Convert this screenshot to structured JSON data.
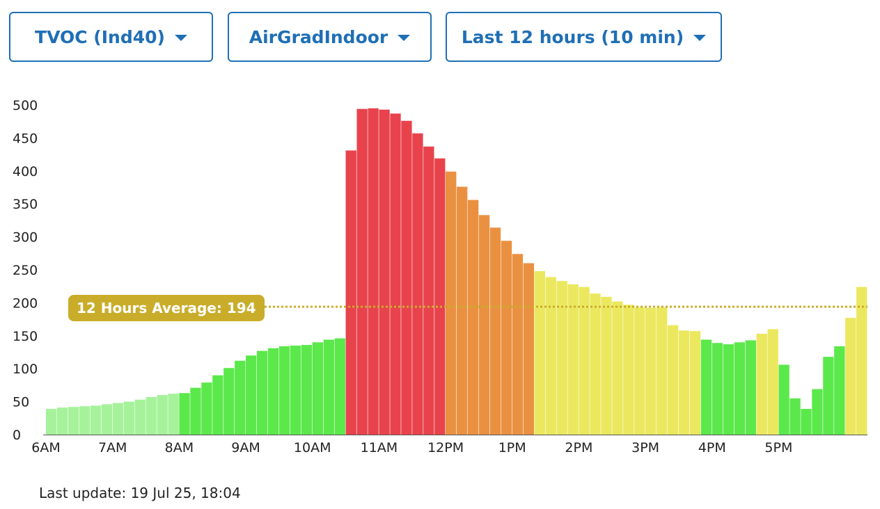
{
  "selectors": {
    "metric": "TVOC (Ind40)",
    "location": "AirGradIndoor",
    "period": "Last 12 hours (10 min)"
  },
  "average": {
    "label": "12 Hours Average: 194",
    "value": 194,
    "color": "#c9ad2a"
  },
  "last_update": "Last update: 19 Jul 25, 18:04",
  "colors": {
    "light_green": "#a6f29b",
    "green": "#5be84b",
    "yellow": "#ebe85f",
    "orange": "#ea9141",
    "red": "#e8434c"
  },
  "chart_data": {
    "type": "bar",
    "ylim": [
      0,
      500
    ],
    "yticks": [
      "0",
      "50",
      "100",
      "150",
      "200",
      "250",
      "300",
      "350",
      "400",
      "450",
      "500"
    ],
    "xticks": [
      "6AM",
      "7AM",
      "8AM",
      "9AM",
      "10AM",
      "11AM",
      "12PM",
      "1PM",
      "2PM",
      "3PM",
      "4PM",
      "5PM"
    ],
    "grid": false,
    "values": [
      39,
      41,
      42,
      43,
      44,
      46,
      48,
      50,
      53,
      57,
      60,
      62,
      63,
      71,
      79,
      90,
      101,
      112,
      120,
      127,
      131,
      134,
      135,
      136,
      140,
      144,
      146,
      431,
      494,
      495,
      493,
      487,
      476,
      457,
      437,
      419,
      399,
      376,
      356,
      333,
      314,
      294,
      274,
      260,
      248,
      239,
      233,
      228,
      224,
      214,
      209,
      202,
      197,
      193,
      192,
      193,
      166,
      158,
      157,
      144,
      139,
      137,
      140,
      143,
      153,
      160,
      106,
      55,
      39,
      69,
      118,
      134,
      177,
      224
    ],
    "categories": [
      "light_green",
      "light_green",
      "light_green",
      "light_green",
      "light_green",
      "light_green",
      "light_green",
      "light_green",
      "light_green",
      "light_green",
      "light_green",
      "light_green",
      "green",
      "green",
      "green",
      "green",
      "green",
      "green",
      "green",
      "green",
      "green",
      "green",
      "green",
      "green",
      "green",
      "green",
      "green",
      "red",
      "red",
      "red",
      "red",
      "red",
      "red",
      "red",
      "red",
      "red",
      "orange",
      "orange",
      "orange",
      "orange",
      "orange",
      "orange",
      "orange",
      "orange",
      "yellow",
      "yellow",
      "yellow",
      "yellow",
      "yellow",
      "yellow",
      "yellow",
      "yellow",
      "yellow",
      "yellow",
      "yellow",
      "yellow",
      "yellow",
      "yellow",
      "yellow",
      "green",
      "green",
      "green",
      "green",
      "green",
      "yellow",
      "yellow",
      "green",
      "green",
      "green",
      "green",
      "green",
      "green",
      "yellow",
      "yellow"
    ]
  }
}
